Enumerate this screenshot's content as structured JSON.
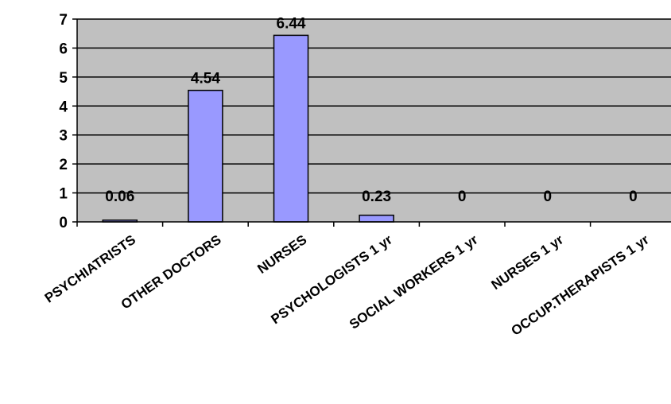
{
  "chart_data": {
    "type": "bar",
    "title": "",
    "xlabel": "",
    "ylabel": "",
    "categories": [
      "PSYCHIATRISTS",
      "OTHER DOCTORS",
      "NURSES",
      "PSYCHOLOGISTS 1 yr",
      "SOCIAL WORKERS 1 yr",
      "NURSES 1  yr",
      "OCCUP.THERAPISTS 1 yr"
    ],
    "values": [
      0.06,
      4.54,
      6.44,
      0.23,
      0,
      0,
      0
    ],
    "data_labels": [
      "0.06",
      "4.54",
      "6.44",
      "0.23",
      "0",
      "0",
      "0"
    ],
    "ylim": [
      0,
      7
    ],
    "yticks": [
      0,
      1,
      2,
      3,
      4,
      5,
      6,
      7
    ],
    "grid": true,
    "legend": "none",
    "colors": {
      "plot_background": "#c0c0c0",
      "bar_fill": "#9999ff",
      "bar_stroke": "#000000",
      "gridline": "#000000"
    }
  }
}
